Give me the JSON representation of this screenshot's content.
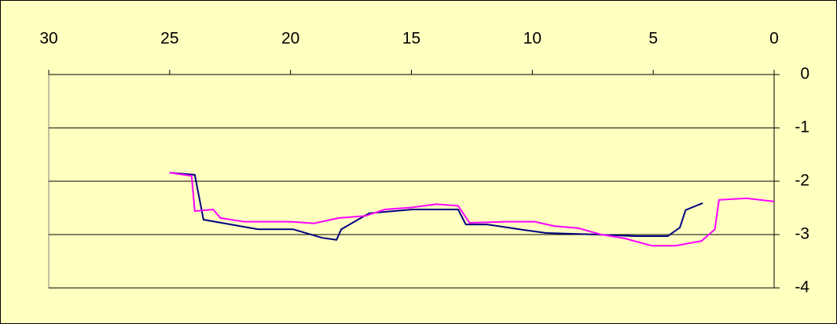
{
  "chart_data": {
    "type": "line",
    "xlim": [
      30,
      0
    ],
    "xticks": [
      30,
      25,
      20,
      15,
      10,
      5,
      0
    ],
    "ylim": [
      -4,
      0
    ],
    "yticks": [
      0,
      -1,
      -2,
      -3,
      -4
    ],
    "grid": true,
    "series": [
      {
        "color": "#000080",
        "x": [
          25.0,
          23.96,
          23.6,
          21.35,
          19.9,
          18.7,
          18.1,
          17.9,
          16.75,
          14.96,
          13.07,
          12.75,
          11.87,
          10.4,
          9.43,
          7.3,
          5.7,
          4.4,
          3.9,
          3.66,
          2.95
        ],
        "values": [
          -1.84,
          -1.88,
          -2.72,
          -2.9,
          -2.9,
          -3.06,
          -3.1,
          -2.9,
          -2.6,
          -2.53,
          -2.53,
          -2.81,
          -2.81,
          -2.91,
          -2.97,
          -3.0,
          -3.03,
          -3.03,
          -2.87,
          -2.54,
          -2.41
        ]
      },
      {
        "color": "#ff00ff",
        "x": [
          25.0,
          24.09,
          23.96,
          23.2,
          22.9,
          21.9,
          19.95,
          19.04,
          18.0,
          16.9,
          16.1,
          14.96,
          13.98,
          13.07,
          12.6,
          11.2,
          9.9,
          9.1,
          8.1,
          7.15,
          6.2,
          5.05,
          4.07,
          3.0,
          2.45,
          2.28,
          1.14,
          0
        ],
        "values": [
          -1.84,
          -1.9,
          -2.56,
          -2.53,
          -2.69,
          -2.76,
          -2.76,
          -2.79,
          -2.69,
          -2.65,
          -2.53,
          -2.49,
          -2.43,
          -2.46,
          -2.78,
          -2.76,
          -2.76,
          -2.84,
          -2.88,
          -3.0,
          -3.07,
          -3.21,
          -3.21,
          -3.12,
          -2.9,
          -2.35,
          -2.32,
          -2.38
        ]
      }
    ]
  }
}
